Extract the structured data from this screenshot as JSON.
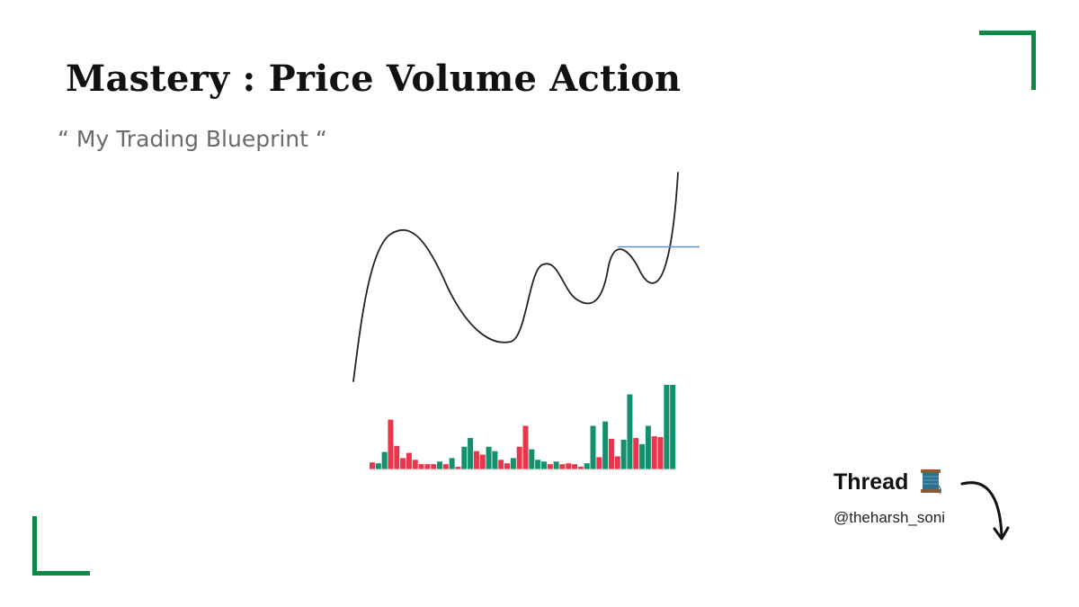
{
  "title": "Mastery : Price Volume Action",
  "subtitle": "“ My Trading Blueprint “",
  "thread_label": "Thread",
  "handle": "@theharsh_soni",
  "colors": {
    "accent_green": "#0b8a45",
    "volume_up": "#13916f",
    "volume_down": "#e8364c",
    "resistance_line": "#5b8fd6",
    "price_line": "#222222"
  },
  "icons": {
    "thread": "spool-of-thread-icon",
    "arrow": "curved-arrow-down-icon"
  },
  "chart_data": {
    "type": "line",
    "price_series_shape": "rise, deep pullback, rising pivots, breakout above resistance",
    "volume": [
      {
        "v": 8,
        "c": "down"
      },
      {
        "v": 7,
        "c": "up"
      },
      {
        "v": 20,
        "c": "up"
      },
      {
        "v": 57,
        "c": "down"
      },
      {
        "v": 27,
        "c": "down"
      },
      {
        "v": 13,
        "c": "down"
      },
      {
        "v": 19,
        "c": "down"
      },
      {
        "v": 11,
        "c": "down"
      },
      {
        "v": 6,
        "c": "down"
      },
      {
        "v": 6,
        "c": "down"
      },
      {
        "v": 6,
        "c": "down"
      },
      {
        "v": 9,
        "c": "up"
      },
      {
        "v": 6,
        "c": "down"
      },
      {
        "v": 13,
        "c": "up"
      },
      {
        "v": 3,
        "c": "down"
      },
      {
        "v": 26,
        "c": "up"
      },
      {
        "v": 36,
        "c": "up"
      },
      {
        "v": 21,
        "c": "down"
      },
      {
        "v": 17,
        "c": "down"
      },
      {
        "v": 26,
        "c": "up"
      },
      {
        "v": 21,
        "c": "up"
      },
      {
        "v": 11,
        "c": "down"
      },
      {
        "v": 7,
        "c": "down"
      },
      {
        "v": 13,
        "c": "up"
      },
      {
        "v": 26,
        "c": "down"
      },
      {
        "v": 50,
        "c": "down"
      },
      {
        "v": 23,
        "c": "up"
      },
      {
        "v": 11,
        "c": "up"
      },
      {
        "v": 9,
        "c": "up"
      },
      {
        "v": 6,
        "c": "down"
      },
      {
        "v": 9,
        "c": "up"
      },
      {
        "v": 6,
        "c": "down"
      },
      {
        "v": 7,
        "c": "down"
      },
      {
        "v": 6,
        "c": "down"
      },
      {
        "v": 3,
        "c": "down"
      },
      {
        "v": 7,
        "c": "up"
      },
      {
        "v": 50,
        "c": "up"
      },
      {
        "v": 14,
        "c": "down"
      },
      {
        "v": 55,
        "c": "up"
      },
      {
        "v": 35,
        "c": "down"
      },
      {
        "v": 15,
        "c": "down"
      },
      {
        "v": 34,
        "c": "up"
      },
      {
        "v": 86,
        "c": "up"
      },
      {
        "v": 36,
        "c": "down"
      },
      {
        "v": 29,
        "c": "up"
      },
      {
        "v": 50,
        "c": "up"
      },
      {
        "v": 38,
        "c": "down"
      },
      {
        "v": 37,
        "c": "down"
      },
      {
        "v": 97,
        "c": "up"
      },
      {
        "v": 97,
        "c": "up"
      }
    ]
  }
}
